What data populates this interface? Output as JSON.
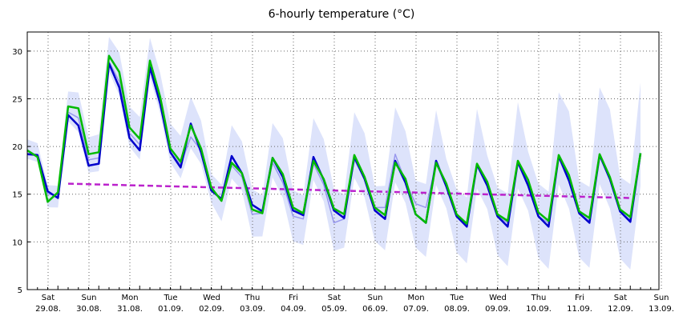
{
  "chart_data": {
    "type": "line",
    "title": "6-hourly temperature (°C)",
    "xlabel": "",
    "ylabel": "",
    "ylim": [
      5,
      32
    ],
    "y_ticks": [
      5,
      10,
      15,
      20,
      25,
      30
    ],
    "grid": true,
    "x_ticks": [
      {
        "day": "Sat",
        "date": "29.08."
      },
      {
        "day": "Sun",
        "date": "30.08."
      },
      {
        "day": "Mon",
        "date": "31.08."
      },
      {
        "day": "Tue",
        "date": "01.09."
      },
      {
        "day": "Wed",
        "date": "02.09."
      },
      {
        "day": "Thu",
        "date": "03.09."
      },
      {
        "day": "Fri",
        "date": "04.09."
      },
      {
        "day": "Sat",
        "date": "05.09."
      },
      {
        "day": "Sun",
        "date": "06.09."
      },
      {
        "day": "Mon",
        "date": "07.09."
      },
      {
        "day": "Tue",
        "date": "08.09."
      },
      {
        "day": "Wed",
        "date": "09.09."
      },
      {
        "day": "Thu",
        "date": "10.09."
      },
      {
        "day": "Fri",
        "date": "11.09."
      },
      {
        "day": "Sat",
        "date": "12.09."
      },
      {
        "day": "Sun",
        "date": "13.09."
      }
    ],
    "x_start": "2020-08-28 06:00",
    "x_step_hours": 6,
    "series": [
      {
        "color": "#0000cc",
        "values": [
          19.2,
          19.1,
          15.3,
          14.6,
          23.3,
          22.2,
          18.0,
          18.2,
          28.7,
          26.2,
          20.9,
          19.6,
          28.3,
          24.5,
          19.4,
          17.8,
          22.4,
          19.4,
          15.4,
          14.5,
          19.0,
          17.2,
          13.9,
          13.2,
          18.8,
          16.8,
          13.3,
          12.8,
          18.9,
          16.5,
          13.3,
          12.5,
          18.9,
          16.6,
          13.3,
          12.4,
          18.5,
          16.2,
          12.9,
          12.0,
          18.5,
          15.8,
          12.7,
          11.6,
          18.1,
          15.9,
          12.7,
          11.6,
          18.4,
          15.9,
          12.7,
          11.6,
          19.0,
          16.4,
          13.0,
          12.0,
          19.1,
          16.6,
          13.2,
          12.1,
          19.3
        ]
      },
      {
        "color": "#00bb00",
        "values": [
          19.6,
          18.9,
          14.2,
          15.2,
          24.2,
          24.0,
          19.2,
          19.4,
          29.5,
          27.8,
          22.0,
          20.8,
          29.0,
          25.2,
          19.8,
          18.4,
          22.2,
          19.8,
          15.7,
          14.3,
          18.3,
          17.2,
          13.4,
          13.0,
          18.8,
          17.1,
          13.6,
          13.0,
          18.5,
          16.6,
          13.5,
          12.9,
          19.1,
          16.8,
          13.6,
          12.8,
          18.3,
          16.6,
          12.9,
          12.0,
          18.3,
          16.1,
          12.9,
          11.9,
          18.2,
          16.3,
          12.9,
          12.2,
          18.5,
          16.5,
          13.1,
          12.2,
          19.1,
          17.0,
          13.2,
          12.5,
          19.2,
          16.8,
          13.4,
          12.6,
          19.3
        ]
      },
      {
        "color": "#9999ee",
        "values": [
          19.3,
          19.0,
          15.0,
          14.9,
          23.6,
          23.0,
          18.6,
          18.8,
          28.9,
          26.8,
          21.4,
          20.2,
          28.8,
          24.8,
          19.4,
          18.1,
          21.0,
          19.6,
          15.6,
          14.4,
          18.0,
          16.8,
          12.9,
          13.0,
          18.3,
          16.2,
          12.7,
          12.4,
          18.2,
          16.0,
          12.0,
          12.4,
          18.6,
          16.6,
          13.6,
          13.6,
          19.2,
          16.3,
          14.0,
          13.6,
          18.2,
          15.8,
          12.7,
          12.0,
          18.0,
          15.9,
          12.7,
          12.0,
          18.2,
          15.9,
          12.7,
          12.0,
          18.8,
          16.3,
          13.0,
          12.2,
          19.0,
          16.5,
          13.2,
          12.3,
          19.0
        ]
      },
      {
        "color": "#bb22cc",
        "style": "dashed",
        "values": [
          16.1,
          14.6
        ]
      }
    ]
  }
}
